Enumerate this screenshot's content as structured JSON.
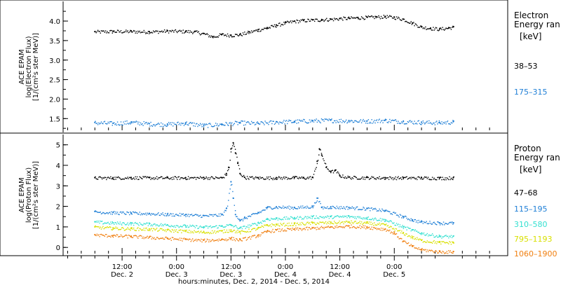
{
  "chart_data": [
    {
      "type": "scatter",
      "panel": "electron",
      "ylabel_lines": [
        "ACE EPAM",
        "log(Electron Flux)",
        "[1/(cm²s ster MeV)]"
      ],
      "yticks": [
        "1.5",
        "2.0",
        "2.5",
        "3.0",
        "3.5",
        "4.0"
      ],
      "ylim": [
        1.2,
        4.45
      ],
      "legend_title": [
        "Electron",
        "Energy ran"
      ],
      "legend_unit": "[keV]",
      "series": [
        {
          "name": "38–53",
          "color": "#000000",
          "x": [
            0,
            4,
            8,
            12,
            16,
            20,
            22,
            24,
            26,
            28,
            30,
            32,
            34,
            36,
            38,
            40,
            42,
            44,
            46,
            48,
            50,
            52,
            54,
            56,
            58,
            60,
            62,
            64,
            66,
            68,
            70,
            72,
            74,
            76,
            78,
            79
          ],
          "y": [
            3.73,
            3.74,
            3.74,
            3.73,
            3.75,
            3.74,
            3.73,
            3.68,
            3.6,
            3.66,
            3.64,
            3.66,
            3.72,
            3.78,
            3.83,
            3.9,
            3.96,
            4.0,
            4.02,
            4.03,
            4.04,
            4.05,
            4.07,
            4.08,
            4.09,
            4.1,
            4.11,
            4.12,
            4.1,
            4.05,
            3.95,
            3.85,
            3.82,
            3.8,
            3.83,
            3.85
          ]
        },
        {
          "name": "175–315",
          "color": "#1f7fd6",
          "x": [
            0,
            4,
            8,
            12,
            16,
            20,
            24,
            28,
            32,
            36,
            40,
            44,
            48,
            52,
            56,
            60,
            64,
            68,
            72,
            76,
            79
          ],
          "y": [
            1.4,
            1.38,
            1.41,
            1.37,
            1.36,
            1.39,
            1.33,
            1.36,
            1.4,
            1.38,
            1.42,
            1.43,
            1.45,
            1.46,
            1.45,
            1.44,
            1.46,
            1.43,
            1.41,
            1.4,
            1.42
          ]
        }
      ]
    },
    {
      "type": "scatter",
      "panel": "proton",
      "ylabel_lines": [
        "ACE EPAM",
        "log(Proton Flux)",
        "[1/(cm²s ster MeV)]"
      ],
      "yticks": [
        "0",
        "1",
        "2",
        "3",
        "4",
        "5"
      ],
      "ylim": [
        -0.3,
        5.4
      ],
      "legend_title": [
        "Proton",
        "Energy ran"
      ],
      "legend_unit": "[keV]",
      "series": [
        {
          "name": "47–68",
          "color": "#000000",
          "x": [
            0,
            4,
            8,
            12,
            16,
            20,
            24,
            28,
            29,
            29.5,
            30,
            30.5,
            31,
            31.5,
            32,
            33,
            36,
            40,
            44,
            46,
            48,
            49,
            49.5,
            50,
            51,
            52,
            53,
            54,
            56,
            60,
            64,
            68,
            72,
            76,
            79
          ],
          "y": [
            3.4,
            3.4,
            3.41,
            3.4,
            3.4,
            3.4,
            3.41,
            3.4,
            3.6,
            3.9,
            4.8,
            5.1,
            4.6,
            4.1,
            3.6,
            3.42,
            3.4,
            3.4,
            3.41,
            3.4,
            3.42,
            4.2,
            4.8,
            4.5,
            3.9,
            3.7,
            3.75,
            3.5,
            3.42,
            3.41,
            3.4,
            3.4,
            3.4,
            3.39,
            3.4
          ]
        },
        {
          "name": "115–195",
          "color": "#1f7fd6",
          "x": [
            0,
            4,
            8,
            12,
            16,
            20,
            24,
            28,
            29,
            30,
            30.5,
            31,
            32,
            33,
            36,
            38,
            40,
            44,
            48,
            49,
            50,
            52,
            56,
            60,
            64,
            68,
            70,
            72,
            76,
            79
          ],
          "y": [
            1.75,
            1.7,
            1.68,
            1.66,
            1.62,
            1.6,
            1.55,
            1.6,
            1.9,
            3.2,
            2.4,
            1.6,
            1.3,
            1.45,
            1.7,
            1.95,
            1.98,
            1.95,
            2.0,
            2.4,
            1.95,
            1.98,
            1.95,
            1.9,
            1.8,
            1.5,
            1.35,
            1.25,
            1.2,
            1.2
          ]
        },
        {
          "name": "310–580",
          "color": "#33e0d0",
          "x": [
            0,
            4,
            8,
            12,
            16,
            20,
            24,
            28,
            30,
            32,
            36,
            38,
            40,
            44,
            48,
            52,
            56,
            60,
            64,
            68,
            70,
            72,
            76,
            79
          ],
          "y": [
            1.25,
            1.2,
            1.18,
            1.15,
            1.1,
            1.05,
            1.0,
            1.05,
            1.1,
            0.95,
            1.2,
            1.4,
            1.42,
            1.45,
            1.5,
            1.5,
            1.52,
            1.45,
            1.35,
            1.0,
            0.85,
            0.7,
            0.55,
            0.55
          ]
        },
        {
          "name": "795–1193",
          "color": "#d8e000",
          "x": [
            0,
            4,
            8,
            12,
            16,
            20,
            24,
            28,
            30,
            32,
            36,
            38,
            40,
            44,
            48,
            52,
            56,
            60,
            64,
            68,
            70,
            72,
            76,
            79
          ],
          "y": [
            1.0,
            0.95,
            0.92,
            0.9,
            0.85,
            0.8,
            0.75,
            0.8,
            0.85,
            0.75,
            0.95,
            1.1,
            1.12,
            1.15,
            1.2,
            1.22,
            1.25,
            1.2,
            1.1,
            0.7,
            0.5,
            0.35,
            0.25,
            0.25
          ]
        },
        {
          "name": "1060–1900",
          "color": "#f07f10",
          "x": [
            0,
            4,
            8,
            12,
            16,
            20,
            24,
            28,
            30,
            32,
            36,
            38,
            40,
            44,
            48,
            52,
            56,
            60,
            64,
            66,
            68,
            70,
            72,
            76,
            79
          ],
          "y": [
            0.62,
            0.58,
            0.55,
            0.5,
            0.45,
            0.4,
            0.35,
            0.4,
            0.45,
            0.38,
            0.6,
            0.8,
            0.85,
            0.9,
            0.95,
            1.0,
            1.05,
            1.0,
            0.9,
            0.7,
            0.3,
            0.05,
            -0.1,
            -0.2,
            -0.2
          ]
        }
      ]
    }
  ],
  "xaxis": {
    "xlabel": "hours:minutes, Dec.  2, 2014 - Dec.  5, 2014",
    "xlim": [
      -7,
      91
    ],
    "ticks": [
      {
        "x": 6,
        "top": "12:00",
        "bottom": "Dec. 2"
      },
      {
        "x": 18,
        "top": "0:00",
        "bottom": "Dec. 3"
      },
      {
        "x": 30,
        "top": "12:00",
        "bottom": "Dec. 3"
      },
      {
        "x": 42,
        "top": "0:00",
        "bottom": "Dec. 4"
      },
      {
        "x": 54,
        "top": "12:00",
        "bottom": "Dec. 4"
      },
      {
        "x": 66,
        "top": "0:00",
        "bottom": "Dec. 5"
      }
    ]
  }
}
